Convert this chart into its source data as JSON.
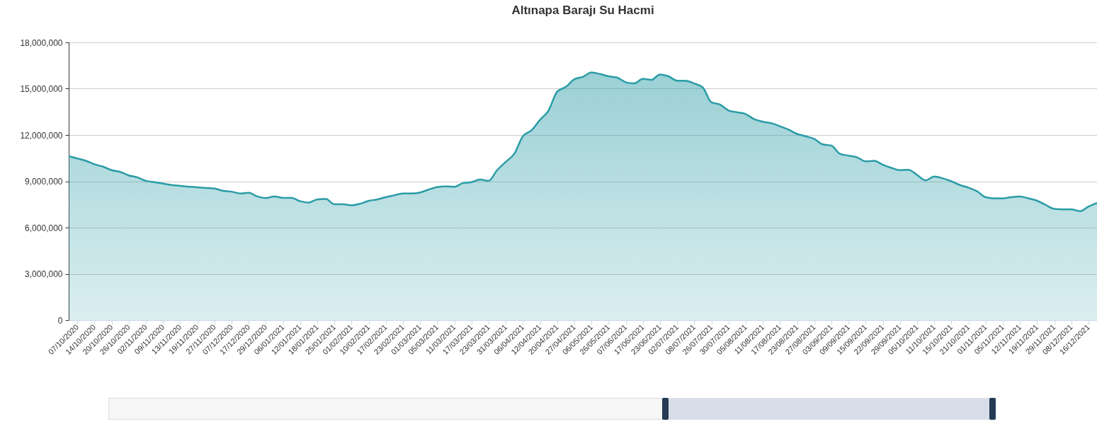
{
  "chart_data": {
    "type": "area",
    "title": "Altınapa Barajı Su Hacmi",
    "categories": [
      null,
      "07/10/2020",
      null,
      "14/10/2020",
      null,
      "20/10/2020",
      null,
      "26/10/2020",
      null,
      "02/11/2020",
      null,
      "09/11/2020",
      null,
      "13/11/2020",
      null,
      "19/11/2020",
      null,
      "27/11/2020",
      null,
      "07/12/2020",
      null,
      "17/12/2020",
      null,
      "29/12/2020",
      null,
      "06/01/2021",
      null,
      "12/01/2021",
      null,
      "18/01/2021",
      null,
      "25/01/2021",
      null,
      "01/02/2021",
      null,
      "10/02/2021",
      null,
      "17/02/2021",
      null,
      "23/02/2021",
      null,
      "01/03/2021",
      null,
      "05/03/2021",
      null,
      "11/03/2021",
      null,
      "17/03/2021",
      null,
      "23/03/2021",
      null,
      "31/03/2021",
      null,
      "06/04/2021",
      null,
      "12/04/2021",
      null,
      "20/04/2021",
      null,
      "27/04/2021",
      null,
      "06/05/2021",
      null,
      "26/05/2021",
      null,
      "07/06/2021",
      null,
      "17/06/2021",
      null,
      "23/06/2021",
      null,
      "02/07/2021",
      null,
      "08/07/2021",
      null,
      "26/07/2021",
      null,
      "30/07/2021",
      null,
      "05/08/2021",
      null,
      "11/08/2021",
      null,
      "17/08/2021",
      null,
      "23/08/2021",
      null,
      "27/08/2021",
      null,
      "03/09/2021",
      null,
      "09/09/2021",
      null,
      "15/09/2021",
      null,
      "22/09/2021",
      null,
      "29/09/2021",
      null,
      "05/10/2021",
      null,
      "11/10/2021",
      null,
      "15/10/2021",
      null,
      "21/10/2021",
      null,
      "01/11/2021",
      null,
      "05/11/2021",
      null,
      "12/11/2021",
      null,
      "19/11/2021",
      null,
      "29/11/2021",
      null,
      "08/12/2021",
      null,
      "16/12/2021",
      null
    ],
    "series": [
      {
        "color": "#2a9ca6",
        "values": [
          10630000,
          10480000,
          10330000,
          10100000,
          9950000,
          9720000,
          9610000,
          9380000,
          9260000,
          9030000,
          8940000,
          8850000,
          8760000,
          8700000,
          8650000,
          8610000,
          8560000,
          8530000,
          8380000,
          8330000,
          8210000,
          8260000,
          8020000,
          7910000,
          8020000,
          7920000,
          7920000,
          7710000,
          7620000,
          7820000,
          7850000,
          7510000,
          7510000,
          7440000,
          7540000,
          7730000,
          7820000,
          7970000,
          8090000,
          8210000,
          8210000,
          8270000,
          8460000,
          8620000,
          8670000,
          8640000,
          8880000,
          8940000,
          9110000,
          9030000,
          9720000,
          10250000,
          10780000,
          11920000,
          12300000,
          12980000,
          13590000,
          14810000,
          15110000,
          15610000,
          15770000,
          16050000,
          15950000,
          15800000,
          15720000,
          15420000,
          15340000,
          15640000,
          15570000,
          15920000,
          15800000,
          15520000,
          15520000,
          15340000,
          15080000,
          14120000,
          13970000,
          13590000,
          13470000,
          13360000,
          13020000,
          12860000,
          12760000,
          12570000,
          12350000,
          12070000,
          11920000,
          11740000,
          11390000,
          11310000,
          10780000,
          10660000,
          10550000,
          10290000,
          10330000,
          10070000,
          9870000,
          9720000,
          9750000,
          9410000,
          9060000,
          9310000,
          9190000,
          9000000,
          8760000,
          8580000,
          8350000,
          7970000,
          7890000,
          7890000,
          7970000,
          8020000,
          7890000,
          7740000,
          7470000,
          7210000,
          7180000,
          7180000,
          7060000,
          7360000,
          7600000
        ]
      }
    ],
    "ylim": [
      0,
      18000000
    ],
    "yticks": [
      0,
      {
        "value": 3000000,
        "label": "3,000,000"
      },
      {
        "value": 6000000,
        "label": "6,000,000"
      },
      {
        "value": 9000000,
        "label": "9,000,000"
      },
      {
        "value": 12000000,
        "label": "12,000,000"
      },
      {
        "value": 15000000,
        "label": "15,000,000"
      },
      {
        "value": 18000000,
        "label": "18,000,000"
      }
    ],
    "grid": "y"
  }
}
